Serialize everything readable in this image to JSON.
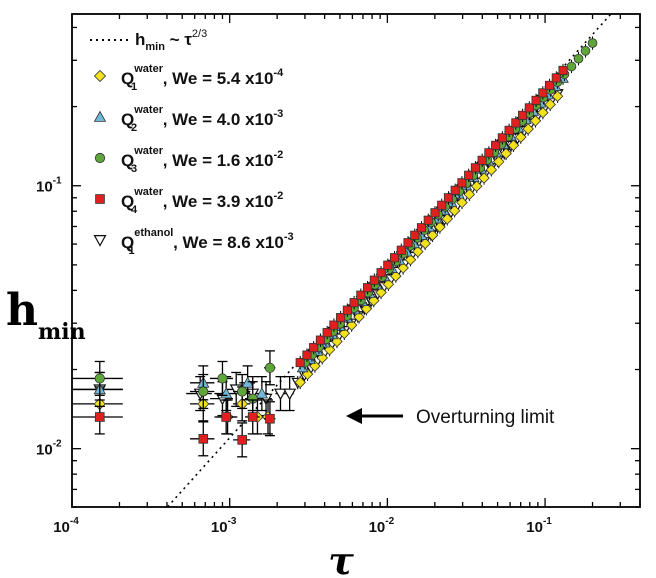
{
  "chart_data": {
    "type": "scatter",
    "xscale": "log",
    "yscale": "log",
    "xlim": [
      0.0001,
      0.4
    ],
    "ylim": [
      0.006,
      0.45
    ],
    "xlabel": "τ",
    "ylabel_main": "h",
    "ylabel_sub": "min",
    "x_ticks": [
      {
        "value": 0.0001,
        "base": "10",
        "exp": "-4"
      },
      {
        "value": 0.001,
        "base": "10",
        "exp": "-3"
      },
      {
        "value": 0.01,
        "base": "10",
        "exp": "-2"
      },
      {
        "value": 0.1,
        "base": "10",
        "exp": "-1"
      }
    ],
    "y_ticks": [
      {
        "value": 0.01,
        "base": "10",
        "exp": "-2"
      },
      {
        "value": 0.1,
        "base": "10",
        "exp": "-1"
      }
    ],
    "reference_line": {
      "label_main": "h",
      "label_sub": "min",
      "label_mid": " ~ τ",
      "label_exp": "2/3",
      "exponent": 0.6667,
      "coefficient": 1.1,
      "style": "dotted"
    },
    "annotation": {
      "text": "Overturning limit",
      "x": 0.0088,
      "y": 0.0133
    },
    "series": [
      {
        "name_main": "Q",
        "name_sub": "1",
        "name_sup": "water",
        "name_rest": ",  We = 5.4 x10",
        "name_exp": "-4",
        "marker": "diamond",
        "color": "#f2e21c",
        "plateau": [
          [
            0.00015,
            0.0148,
            6e-05
          ],
          [
            0.00068,
            0.0148,
            0.00012
          ],
          [
            0.00097,
            0.0132,
            0.00015
          ],
          [
            0.0012,
            0.0148,
            0.00015
          ],
          [
            0.0015,
            0.0132,
            0.00015
          ],
          [
            0.00175,
            0.0132,
            0.00015
          ]
        ],
        "power": {
          "x_start": 0.0028,
          "x_end": 0.12,
          "n": 36,
          "coef": 0.9,
          "exp": 0.6667
        }
      },
      {
        "name_main": "Q",
        "name_sub": "2",
        "name_sup": "water",
        "name_rest": ",  We = 4.0 x10",
        "name_exp": "-3",
        "marker": "triangle-up",
        "color": "#6fb8d8",
        "plateau": [
          [
            0.00015,
            0.0168,
            6e-05
          ],
          [
            0.00068,
            0.0178,
            0.00012
          ],
          [
            0.00095,
            0.0162,
            0.00015
          ],
          [
            0.0013,
            0.0178,
            0.00015
          ],
          [
            0.0016,
            0.0162,
            0.00015
          ]
        ],
        "power": {
          "x_start": 0.0029,
          "x_end": 0.13,
          "n": 36,
          "coef": 1.0,
          "exp": 0.6667
        }
      },
      {
        "name_main": "Q",
        "name_sub": "3",
        "name_sup": "water",
        "name_rest": ",  We = 1.6 x10",
        "name_exp": "-2",
        "marker": "circle",
        "color": "#5fa63a",
        "plateau": [
          [
            0.00015,
            0.0185,
            6e-05
          ],
          [
            0.00068,
            0.0165,
            0.00012
          ],
          [
            0.0009,
            0.0185,
            0.00015
          ],
          [
            0.0012,
            0.0165,
            0.00015
          ],
          [
            0.0014,
            0.0155,
            0.00015
          ],
          [
            0.0018,
            0.0203,
            0.00015
          ]
        ],
        "power": {
          "x_start": 0.003,
          "x_end": 0.2,
          "n": 42,
          "coef": 1.02,
          "exp": 0.6667
        }
      },
      {
        "name_main": "Q",
        "name_sub": "4",
        "name_sup": "water",
        "name_rest": ",  We = 3.9 x10",
        "name_exp": "-2",
        "marker": "square",
        "color": "#e0201e",
        "plateau": [
          [
            0.00015,
            0.0132,
            6e-05
          ],
          [
            0.00068,
            0.0109,
            0.00012
          ],
          [
            0.00095,
            0.0132,
            0.00015
          ],
          [
            0.0012,
            0.0108,
            0.00015
          ],
          [
            0.0014,
            0.0132,
            0.00015
          ],
          [
            0.0018,
            0.013,
            0.00015
          ]
        ],
        "power": {
          "x_start": 0.0028,
          "x_end": 0.13,
          "n": 40,
          "coef": 1.07,
          "exp": 0.6667
        }
      },
      {
        "name_main": "Q",
        "name_sub": "1",
        "name_sup": "ethanol",
        "name_rest": ", We = 8.6 x10",
        "name_exp": "-3",
        "marker": "triangle-down-open",
        "color": "#ffffff",
        "plateau": [
          [
            0.00015,
            0.0168,
            6e-05
          ],
          [
            0.00065,
            0.0162,
            0.00012
          ],
          [
            0.0009,
            0.0155,
            0.00015
          ],
          [
            0.0011,
            0.0168,
            0.00015
          ],
          [
            0.0014,
            0.0162,
            0.00015
          ],
          [
            0.0017,
            0.0155,
            0.00015
          ],
          [
            0.0021,
            0.0162,
            0.00015
          ],
          [
            0.0024,
            0.0162,
            0.00015
          ]
        ],
        "power": {
          "x_start": 0.0027,
          "x_end": 0.12,
          "n": 40,
          "coef": 0.92,
          "exp": 0.6667
        }
      }
    ]
  }
}
